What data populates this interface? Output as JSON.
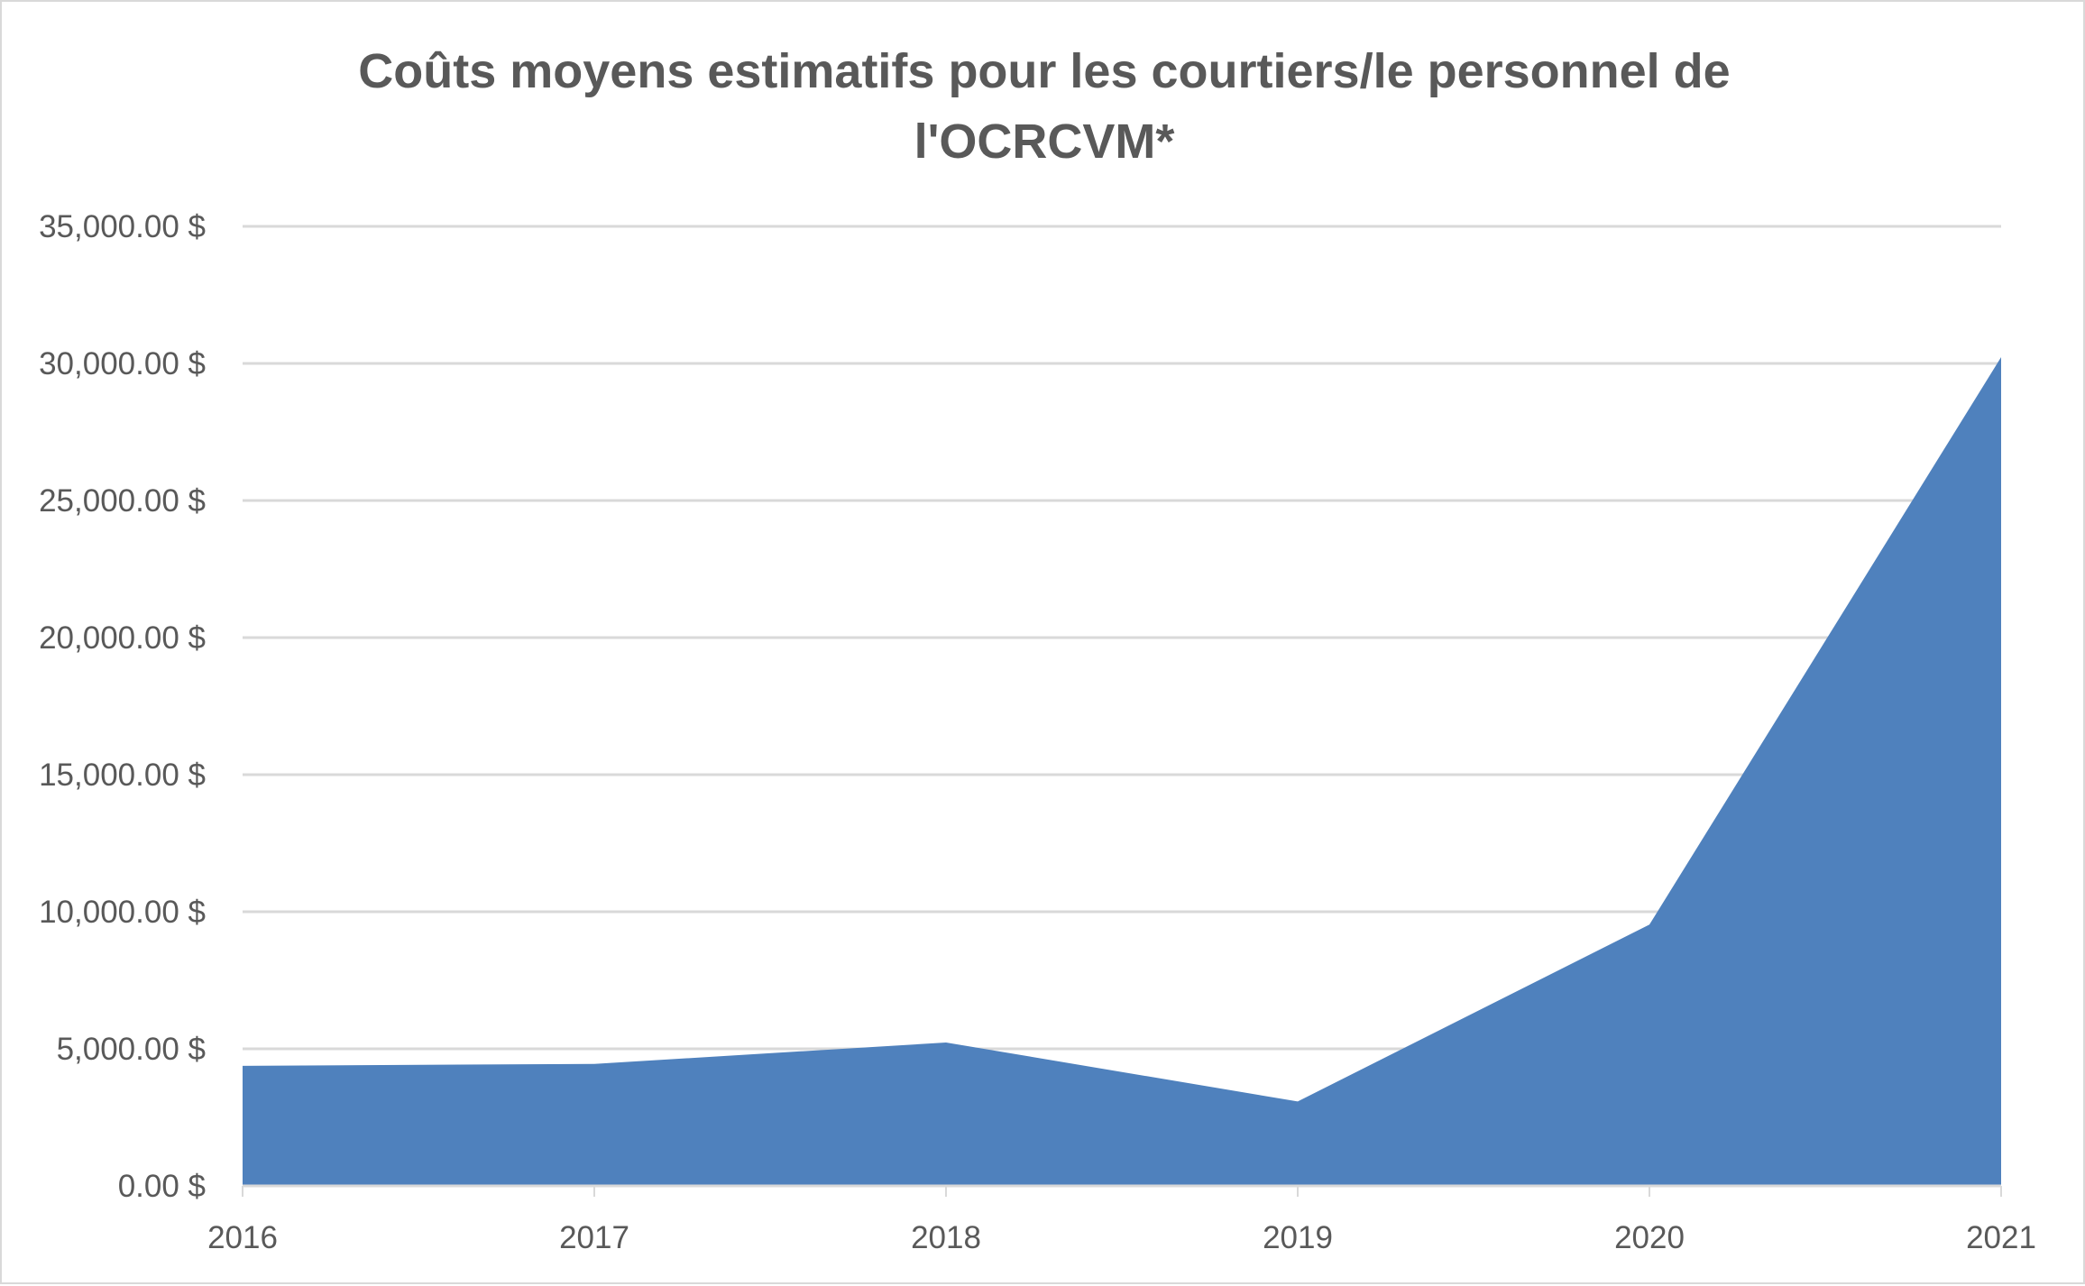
{
  "chart_data": {
    "type": "area",
    "title_lines": [
      "Coûts moyens estimatifs pour les courtiers/le personnel de",
      "l'OCRCVM*"
    ],
    "categories": [
      "2016",
      "2017",
      "2018",
      "2019",
      "2020",
      "2021"
    ],
    "values": [
      4380,
      4450,
      5230,
      3080,
      9530,
      30230
    ],
    "ylim": [
      0,
      35000
    ],
    "yticks": [
      0,
      5000,
      10000,
      15000,
      20000,
      25000,
      30000,
      35000
    ],
    "ytick_labels": [
      "0.00 $",
      "5,000.00 $",
      "10,000.00 $",
      "15,000.00 $",
      "20,000.00 $",
      "25,000.00 $",
      "30,000.00 $",
      "35,000.00 $"
    ],
    "grid": true,
    "legend": "none",
    "colors": {
      "area": "#4f81bd",
      "grid": "#d9d9d9",
      "text": "#595959"
    }
  }
}
